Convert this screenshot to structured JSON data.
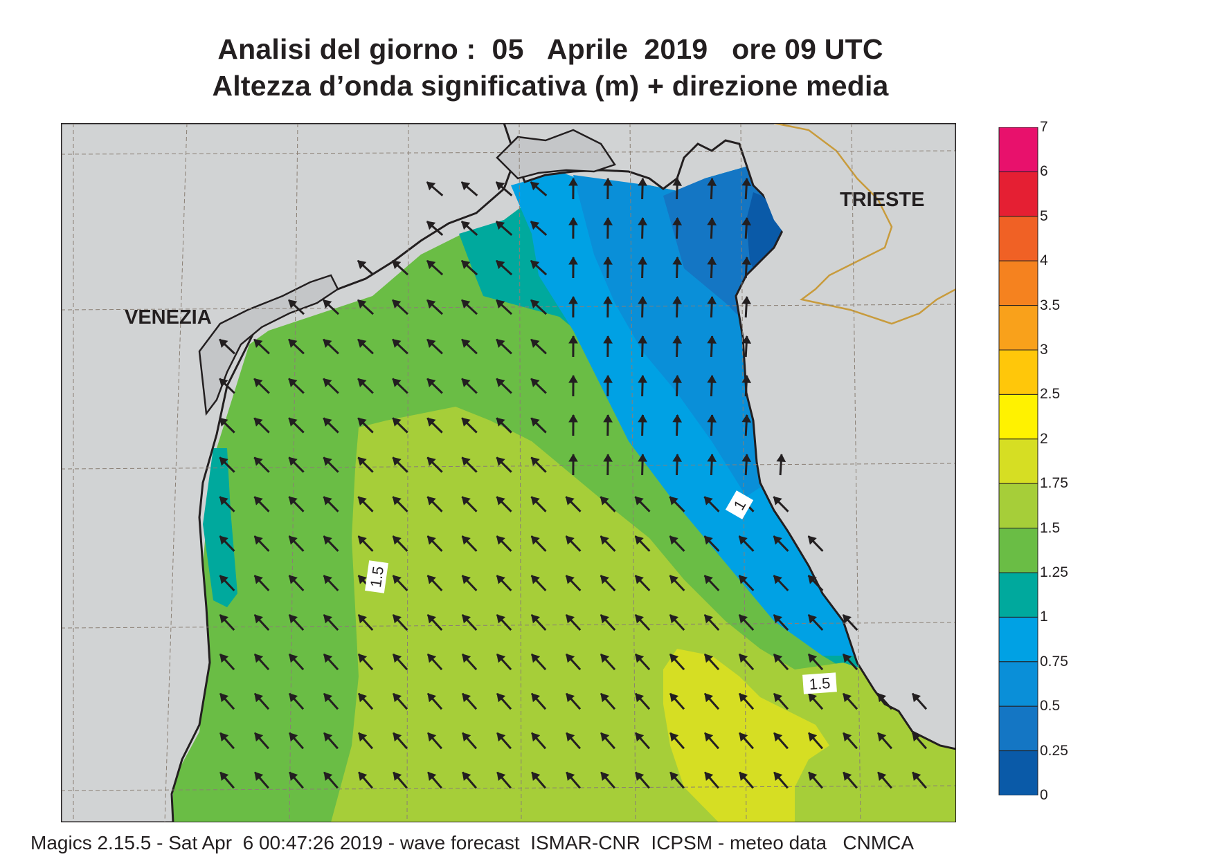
{
  "title": {
    "line1": "Analisi del giorno :  05   Aprile  2019   ore 09 UTC",
    "line2": "Altezza d’onda significativa (m) + direzione media"
  },
  "places": {
    "venezia": "VENEZIA",
    "trieste": "TRIESTE"
  },
  "contour_labels": {
    "c1": "1",
    "c15a": "1.5",
    "c15b": "1.5"
  },
  "legend": [
    {
      "label": "7",
      "color": "#e8116c"
    },
    {
      "label": "6",
      "color": "#e51f33"
    },
    {
      "label": "5",
      "color": "#f06125"
    },
    {
      "label": "4",
      "color": "#f5821f"
    },
    {
      "label": "3.5",
      "color": "#f9a11b"
    },
    {
      "label": "3",
      "color": "#ffc70a"
    },
    {
      "label": "2.5",
      "color": "#fff200"
    },
    {
      "label": "2",
      "color": "#d6de23"
    },
    {
      "label": "1.75",
      "color": "#a6ce39"
    },
    {
      "label": "1.5",
      "color": "#6abd45"
    },
    {
      "label": "1.25",
      "color": "#00a99d"
    },
    {
      "label": "1",
      "color": "#00a1e4"
    },
    {
      "label": "0.75",
      "color": "#0a8fd8"
    },
    {
      "label": "0.5",
      "color": "#1476c4"
    },
    {
      "label": "0.25",
      "color": "#0a5aa8"
    },
    {
      "label": "0",
      "color": ""
    }
  ],
  "colors": {
    "land": "#d1d3d4",
    "border": "#c89b3c",
    "grid": "#8a7f74",
    "coast": "#231f20"
  },
  "footer": "Magics 2.15.5 - Sat Apr  6 00:47:26 2019 - wave forecast  ISMAR-CNR  ICPSM - meteo data   CNMCA"
}
